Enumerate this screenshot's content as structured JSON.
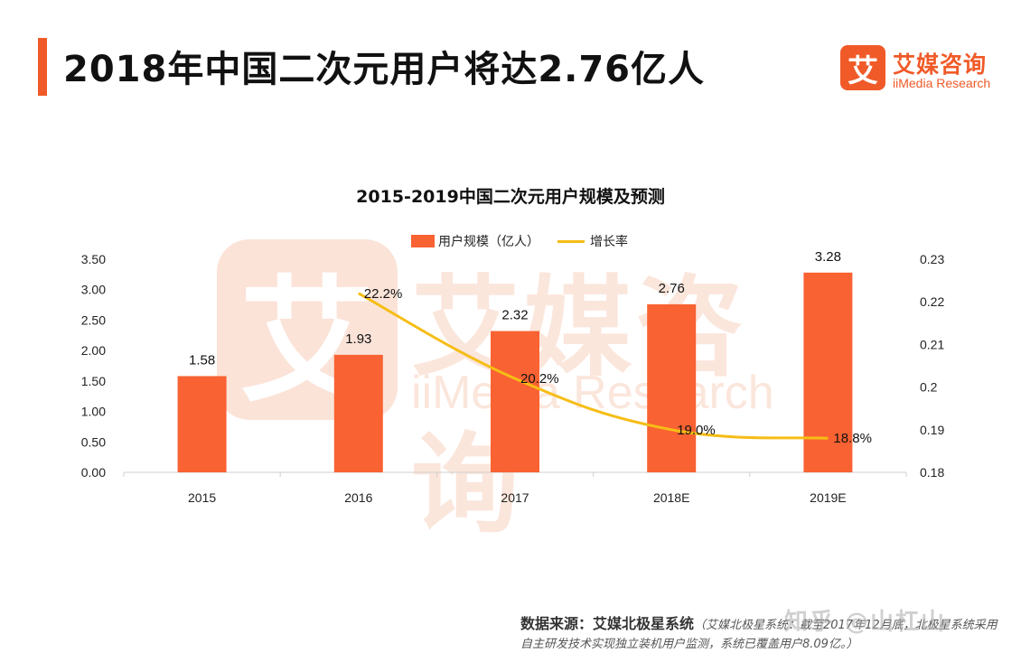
{
  "header": {
    "title": "2018年中国二次元用户将达2.76亿人",
    "accent_color": "#f05a28"
  },
  "logo": {
    "mark": "艾",
    "name_cn": "艾媒咨询",
    "name_en": "iiMedia Research"
  },
  "watermark": {
    "mark": "艾",
    "name_cn": "艾媒咨询",
    "name_en": "iiMedia Research"
  },
  "chart_data": {
    "type": "bar",
    "title": "2015-2019中国二次元用户规模及预测",
    "categories": [
      "2015",
      "2016",
      "2017",
      "2018E",
      "2019E"
    ],
    "series": [
      {
        "name": "用户规模（亿人）",
        "type": "bar",
        "axis": "left",
        "color": "#f96232",
        "values": [
          1.58,
          1.93,
          2.32,
          2.76,
          3.28
        ],
        "labels": [
          "1.58",
          "1.93",
          "2.32",
          "2.76",
          "3.28"
        ]
      },
      {
        "name": "增长率",
        "type": "line",
        "axis": "right",
        "color": "#f6bd16",
        "values": [
          null,
          0.222,
          0.202,
          0.19,
          0.188
        ],
        "labels": [
          "",
          "22.2%",
          "20.2%",
          "19.0%",
          "18.8%"
        ]
      }
    ],
    "left_axis": {
      "ylim": [
        0,
        3.5
      ],
      "ticks": [
        "0.00",
        "0.50",
        "1.00",
        "1.50",
        "2.00",
        "2.50",
        "3.00",
        "3.50"
      ]
    },
    "right_axis": {
      "ylim": [
        0.18,
        0.23
      ],
      "ticks": [
        "0.18",
        "0.19",
        "0.2",
        "0.21",
        "0.22",
        "0.23"
      ]
    },
    "legend_position": "top-center",
    "grid": false
  },
  "source": {
    "label": "数据来源：艾媒北极星系统",
    "note": "（艾媒北极星系统：截至2017年12月底，北极星系统采用自主研发技术实现独立装机用户监测，系统已覆盖用户8.09亿。）"
  },
  "platform_watermark": "知乎 @山杠山"
}
